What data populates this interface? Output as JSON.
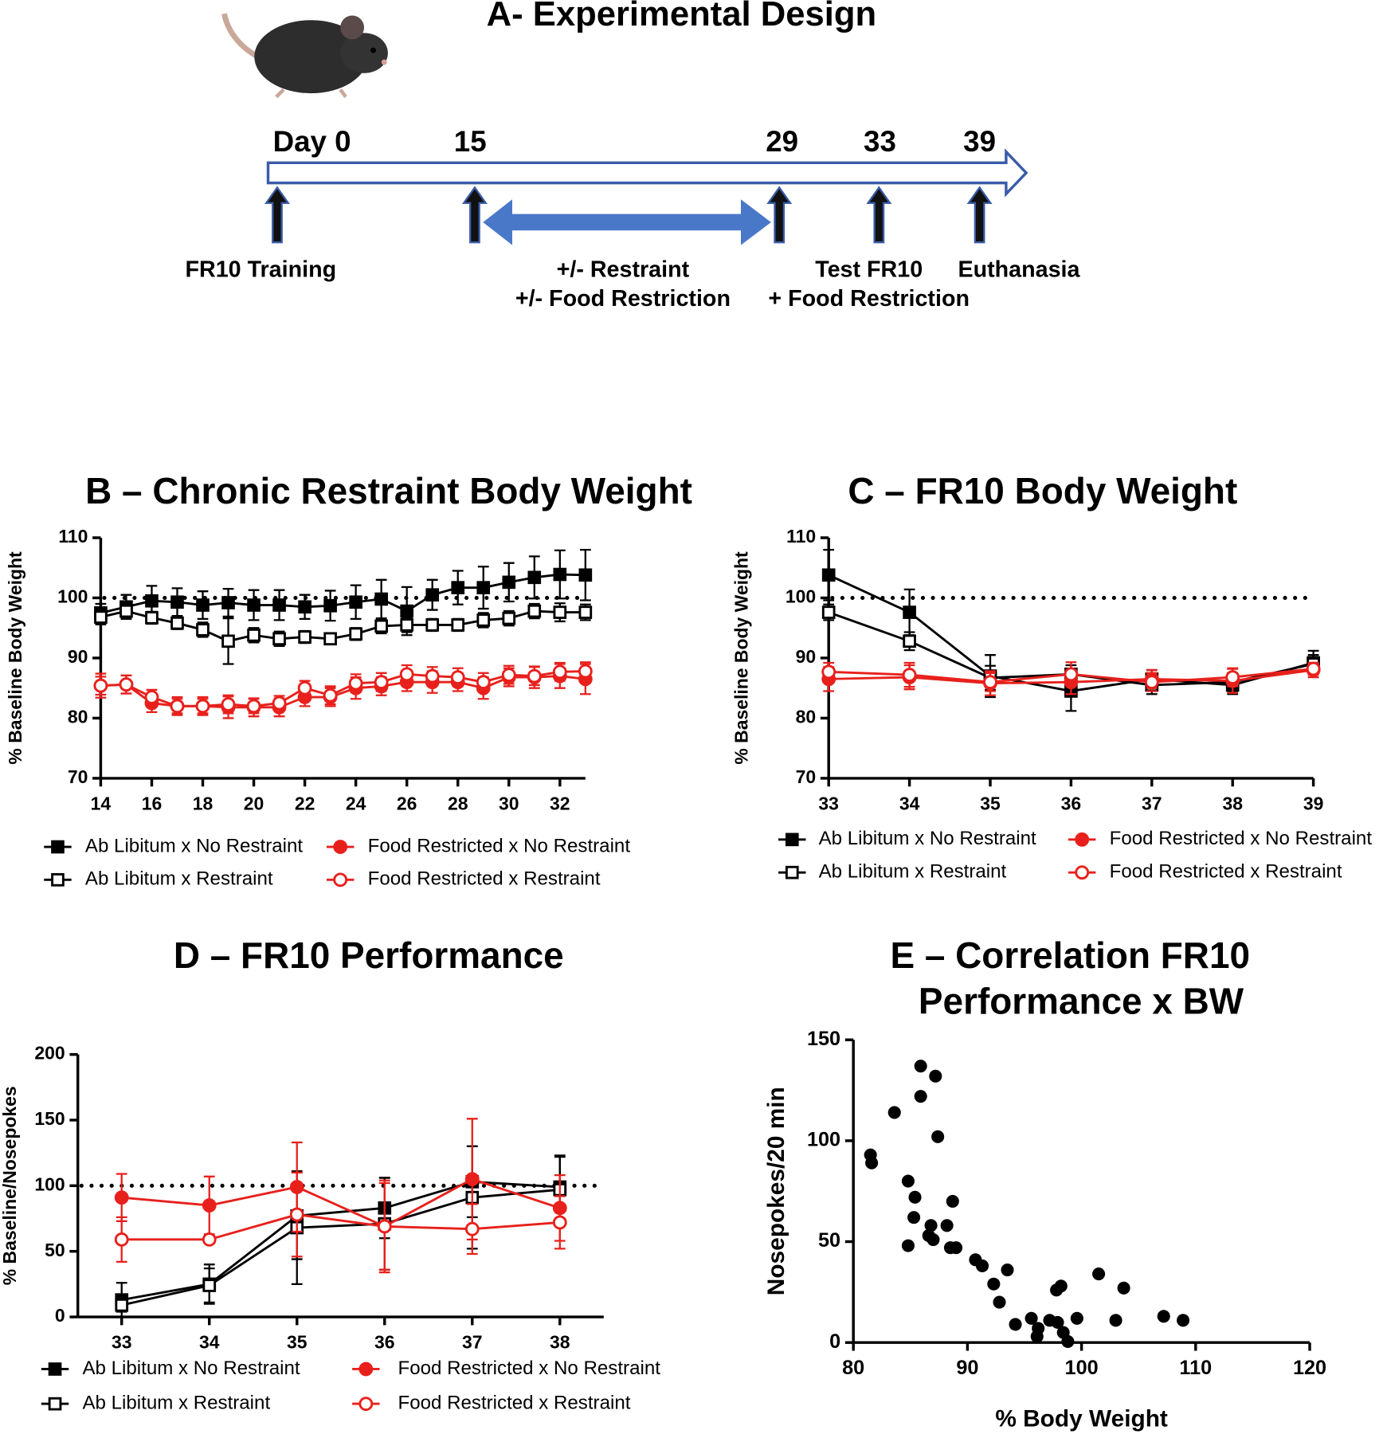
{
  "design": {
    "title": "A- Experimental Design",
    "timeline": [
      "Day 0",
      "15",
      "29",
      "33",
      "39"
    ],
    "labels": [
      "FR10 Training",
      "+/- Restraint",
      "+/- Food Restriction",
      "Test FR10",
      "+ Food Restriction",
      "Euthanasia"
    ]
  },
  "chart_data": [
    {
      "type": "line",
      "title": "B – Chronic Restraint Body Weight",
      "y_label": "% Baseline Body Weight",
      "x": [
        14,
        15,
        16,
        17,
        18,
        19,
        20,
        21,
        22,
        23,
        24,
        25,
        26,
        27,
        28,
        29,
        30,
        31,
        32,
        33
      ],
      "xlim": [
        14,
        33
      ],
      "xticks": [
        14,
        16,
        18,
        20,
        22,
        24,
        26,
        28,
        30,
        32
      ],
      "ylim": [
        70,
        110
      ],
      "yticks": [
        70,
        80,
        90,
        100,
        110
      ],
      "reference_line": 100,
      "series": [
        {
          "name": "Ab Libitum x No Restraint",
          "color": "#000000",
          "marker": "square",
          "filled": true,
          "values": [
            97.5,
            98.5,
            99.5,
            99.3,
            98.8,
            99.2,
            98.8,
            98.8,
            98.5,
            98.7,
            99.3,
            99.8,
            97.8,
            100.5,
            101.7,
            101.7,
            102.6,
            103.4,
            103.9,
            103.8
          ],
          "errors": [
            1.5,
            2,
            2.5,
            2.3,
            2.3,
            2.3,
            2.5,
            2.5,
            2,
            2.5,
            2.8,
            3.2,
            4,
            2.5,
            2.8,
            3.5,
            3.2,
            3.5,
            4,
            4.2
          ]
        },
        {
          "name": "Ab Libitum x Restraint",
          "color": "#000000",
          "marker": "square",
          "filled": false,
          "values": [
            96.8,
            97.8,
            96.7,
            95.8,
            94.7,
            92.8,
            93.8,
            93.2,
            93.5,
            93.2,
            94.0,
            95.3,
            95.5,
            95.5,
            95.5,
            96.3,
            96.6,
            97.8,
            97.6,
            97.6
          ],
          "errors": [
            1.2,
            1.2,
            1,
            1,
            1.2,
            3.8,
            1.2,
            1.2,
            1,
            0.8,
            1,
            1.2,
            1.2,
            1,
            1,
            1.2,
            1.2,
            1.2,
            1.5,
            1.3
          ]
        },
        {
          "name": "Food Restricted x No Restraint",
          "color": "#e8201c",
          "marker": "circle",
          "filled": true,
          "values": [
            85.4,
            85.6,
            82.5,
            82.0,
            82.0,
            81.8,
            81.8,
            81.8,
            83.5,
            83.5,
            85.0,
            85.3,
            86.0,
            86.0,
            86.0,
            85.0,
            86.8,
            86.8,
            87.0,
            86.5
          ],
          "errors": [
            2,
            1.5,
            1.5,
            1.5,
            1.5,
            1.8,
            1.5,
            1.5,
            1.5,
            1.5,
            1.8,
            1.5,
            1.5,
            1.8,
            1.5,
            1.8,
            1.5,
            1.8,
            2,
            2.5
          ]
        },
        {
          "name": "Food Restricted x Restraint",
          "color": "#e8201c",
          "marker": "circle",
          "filled": false,
          "values": [
            85.4,
            85.6,
            83.5,
            82.0,
            82.0,
            82.3,
            82.0,
            82.5,
            85.0,
            83.8,
            85.8,
            86.0,
            87.3,
            87.0,
            86.8,
            86.0,
            87.2,
            87.0,
            87.7,
            87.8
          ],
          "errors": [
            1.5,
            1.5,
            1.2,
            1.2,
            1.2,
            1.5,
            1.2,
            1.2,
            1.2,
            1.5,
            1.5,
            1.5,
            1.5,
            1.5,
            1.5,
            1.5,
            1.5,
            1.5,
            1.5,
            1.5
          ]
        }
      ]
    },
    {
      "type": "line",
      "title": "C – FR10 Body Weight",
      "y_label": "% Baseline Body Weight",
      "x": [
        33,
        34,
        35,
        36,
        37,
        38,
        39
      ],
      "xlim": [
        33,
        39
      ],
      "xticks": [
        33,
        34,
        35,
        36,
        37,
        38,
        39
      ],
      "ylim": [
        70,
        110
      ],
      "yticks": [
        70,
        80,
        90,
        100,
        110
      ],
      "reference_line": 100,
      "series": [
        {
          "name": "Ab Libitum x No Restraint",
          "color": "#000000",
          "marker": "square",
          "filled": true,
          "values": [
            103.8,
            97.6,
            87.0,
            84.5,
            86.5,
            85.5,
            89.2
          ],
          "errors": [
            4.2,
            3.8,
            3.5,
            3.3,
            1.5,
            1.5,
            2
          ]
        },
        {
          "name": "Ab Libitum x Restraint",
          "color": "#000000",
          "marker": "square",
          "filled": false,
          "values": [
            97.6,
            92.8,
            86.7,
            87.3,
            85.5,
            86.0,
            89.0
          ],
          "errors": [
            1.3,
            1.5,
            2,
            1.5,
            1.5,
            1.5,
            1.5
          ]
        },
        {
          "name": "Food Restricted x No Restraint",
          "color": "#e8201c",
          "marker": "circle",
          "filled": true,
          "values": [
            86.5,
            86.8,
            85.8,
            86.0,
            86.5,
            86.2,
            88.0
          ],
          "errors": [
            2,
            2,
            2,
            2,
            1.5,
            2,
            1.2
          ]
        },
        {
          "name": "Food Restricted x Restraint",
          "color": "#e8201c",
          "marker": "circle",
          "filled": false,
          "values": [
            87.7,
            87.2,
            86.0,
            87.3,
            86.0,
            86.8,
            88.2
          ],
          "errors": [
            1.5,
            2,
            1.5,
            2,
            1.5,
            1.5,
            1
          ]
        }
      ]
    },
    {
      "type": "line",
      "title": "D – FR10 Performance",
      "y_label": "% Baseline/Nosepokes",
      "x": [
        33,
        34,
        35,
        36,
        37,
        38
      ],
      "xlim": [
        32.5,
        38.5
      ],
      "xticks": [
        33,
        34,
        35,
        36,
        37,
        38
      ],
      "ylim": [
        0,
        200
      ],
      "yticks": [
        0,
        50,
        100,
        150,
        200
      ],
      "reference_line": 100,
      "series": [
        {
          "name": "Ab Libitum x No Restraint",
          "color": "#000000",
          "marker": "square",
          "filled": true,
          "values": [
            13,
            25,
            77,
            83,
            103,
            99
          ],
          "errors": [
            13,
            15,
            33,
            23,
            27,
            24
          ]
        },
        {
          "name": "Ab Libitum x Restraint",
          "color": "#000000",
          "marker": "square",
          "filled": false,
          "values": [
            9,
            24,
            68,
            71,
            91,
            97
          ],
          "errors": [
            5,
            13,
            43,
            35,
            39,
            25
          ]
        },
        {
          "name": "Food Restricted x No Restraint",
          "color": "#e8201c",
          "marker": "circle",
          "filled": true,
          "values": [
            91,
            85,
            99,
            69,
            105,
            83
          ],
          "errors": [
            18,
            22,
            34,
            33,
            46,
            25
          ]
        },
        {
          "name": "Food Restricted x Restraint",
          "color": "#e8201c",
          "marker": "circle",
          "filled": false,
          "values": [
            59,
            59,
            78,
            69,
            67,
            72
          ],
          "errors": [
            17,
            0,
            32,
            35,
            19,
            20
          ]
        }
      ]
    },
    {
      "type": "scatter",
      "title": [
        "E – Correlation FR10",
        "Performance x BW"
      ],
      "x_label": "% Body Weight",
      "y_label": "Nosepokes/20 min",
      "color": "#000000",
      "xlim": [
        80,
        120
      ],
      "xticks": [
        80,
        90,
        100,
        110,
        120
      ],
      "ylim": [
        0,
        150
      ],
      "yticks": [
        0,
        50,
        100,
        150
      ],
      "x": [
        81.5,
        81.6,
        83.6,
        85.9,
        85.9,
        87.2,
        87.4,
        84.8,
        85.4,
        85.3,
        84.8,
        88.7,
        86.8,
        88.2,
        86.6,
        87.0,
        88.5,
        89.0,
        90.7,
        91.3,
        93.5,
        92.3,
        92.8,
        94.2,
        95.6,
        96.2,
        96.1,
        97.2,
        97.8,
        98.2,
        97.9,
        98.4,
        98.8,
        99.6,
        101.5,
        103.7,
        103.0,
        107.2,
        108.9
      ],
      "values": [
        93,
        89,
        114,
        137,
        122,
        132,
        102,
        80,
        72,
        62,
        48,
        70,
        58,
        58,
        53,
        51,
        47,
        47,
        41,
        38,
        36,
        29,
        20,
        9,
        12,
        7,
        3,
        11,
        26,
        28,
        10,
        5,
        0.5,
        12,
        34,
        27,
        11,
        13,
        11
      ]
    }
  ]
}
